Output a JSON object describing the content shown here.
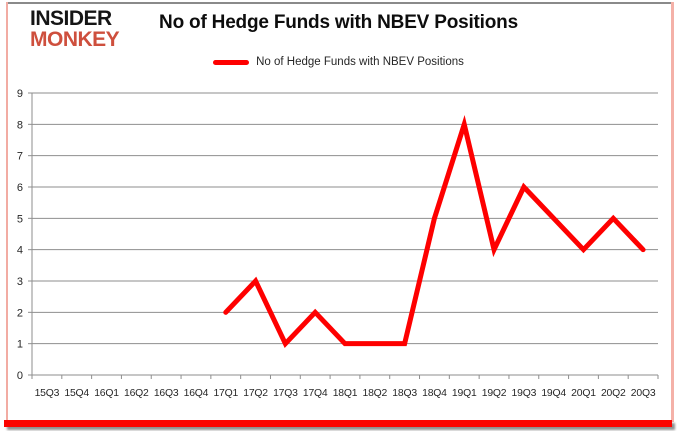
{
  "branding": {
    "logo_line1": "INSIDER",
    "logo_line2": "MONKEY",
    "logo_color_primary": "#151515",
    "logo_color_accent": "#ce4f3d"
  },
  "header": {
    "title": "No of Hedge Funds with NBEV Positions"
  },
  "legend": {
    "label": "No of Hedge Funds with NBEV Positions",
    "swatch_color": "#fe0000"
  },
  "chart_data": {
    "type": "line",
    "title": "No of Hedge Funds with NBEV Positions",
    "categories": [
      "15Q3",
      "15Q4",
      "16Q1",
      "16Q2",
      "16Q3",
      "16Q4",
      "17Q1",
      "17Q2",
      "17Q3",
      "17Q4",
      "18Q1",
      "18Q2",
      "18Q3",
      "18Q4",
      "19Q1",
      "19Q2",
      "19Q3",
      "19Q4",
      "20Q1",
      "20Q2",
      "20Q3"
    ],
    "series": [
      {
        "name": "No of Hedge Funds with NBEV Positions",
        "color": "#fe0000",
        "values": [
          null,
          null,
          null,
          null,
          null,
          null,
          2,
          3,
          1,
          2,
          1,
          1,
          1,
          5,
          8,
          4,
          6,
          5,
          4,
          5,
          4
        ]
      }
    ],
    "xlabel": "",
    "ylabel": "",
    "ylim": [
      0,
      9
    ],
    "yticks": [
      0,
      1,
      2,
      3,
      4,
      5,
      6,
      7,
      8,
      9
    ],
    "grid": "horizontal",
    "legend_position": "top-center",
    "gridline_color": "#8e8e8e",
    "axis_color": "#8e8e8e",
    "tick_label_color": "#262626",
    "line_width": 5
  },
  "frame": {
    "bottom_bar_color": "#fb0400",
    "side_border_color": "#f2aca3",
    "top_border_color": "#8a8a8a"
  }
}
